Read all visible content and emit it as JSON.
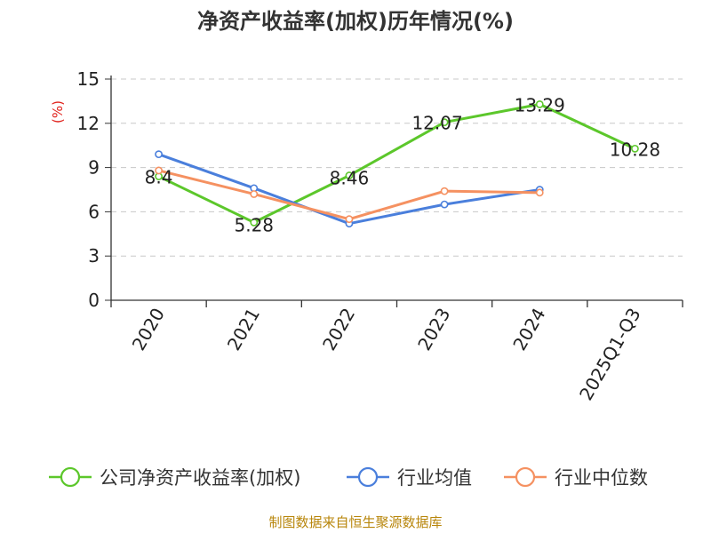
{
  "chart_data": {
    "type": "line",
    "title": "净资产收益率(加权)历年情况(%)",
    "ylabel": "(%)",
    "xlabel": "",
    "categories": [
      "2020",
      "2021",
      "2022",
      "2023",
      "2024",
      "2025Q1-Q3"
    ],
    "ylim": [
      0,
      15
    ],
    "yticks": [
      0,
      3,
      6,
      9,
      12,
      15
    ],
    "grid": true,
    "legend_position": "bottom",
    "series": [
      {
        "name": "公司净资产收益率(加权)",
        "color": "#5cc72b",
        "values": [
          8.4,
          5.28,
          8.46,
          12.07,
          13.29,
          10.28
        ],
        "labels": [
          "8.4",
          "5.28",
          "8.46",
          "12.07",
          "13.29",
          "10.28"
        ]
      },
      {
        "name": "行业均值",
        "color": "#4a7fdc",
        "values": [
          9.9,
          7.6,
          5.2,
          6.5,
          7.5,
          null
        ]
      },
      {
        "name": "行业中位数",
        "color": "#f59161",
        "values": [
          8.8,
          7.2,
          5.5,
          7.4,
          7.3,
          null
        ]
      }
    ]
  },
  "source_text": "制图数据来自恒生聚源数据库"
}
